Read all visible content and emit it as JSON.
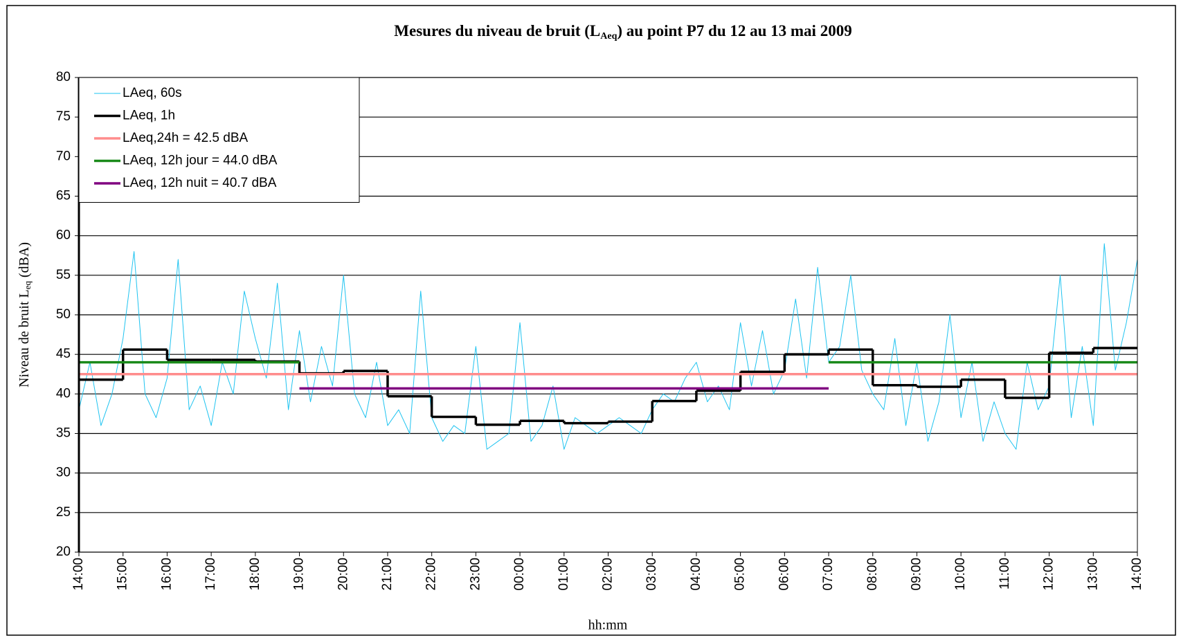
{
  "chart_data": {
    "type": "line",
    "title": {
      "main": "Mesures du niveau de bruit (L",
      "sub": "Aeq",
      "end": ") au point P7 du 12 au 13 mai 2009"
    },
    "y_label": {
      "main": "Niveau de bruit L",
      "sub": "eq",
      "end": " (dBA)"
    },
    "x_label": "hh:mm",
    "xlim": [
      0,
      24
    ],
    "xticks": [
      {
        "value": 0,
        "label": "14:00"
      },
      {
        "value": 1,
        "label": "15:00"
      },
      {
        "value": 2,
        "label": "16:00"
      },
      {
        "value": 3,
        "label": "17:00"
      },
      {
        "value": 4,
        "label": "18:00"
      },
      {
        "value": 5,
        "label": "19:00"
      },
      {
        "value": 6,
        "label": "20:00"
      },
      {
        "value": 7,
        "label": "21:00"
      },
      {
        "value": 8,
        "label": "22:00"
      },
      {
        "value": 9,
        "label": "23:00"
      },
      {
        "value": 10,
        "label": "00:00"
      },
      {
        "value": 11,
        "label": "01:00"
      },
      {
        "value": 12,
        "label": "02:00"
      },
      {
        "value": 13,
        "label": "03:00"
      },
      {
        "value": 14,
        "label": "04:00"
      },
      {
        "value": 15,
        "label": "05:00"
      },
      {
        "value": 16,
        "label": "06:00"
      },
      {
        "value": 17,
        "label": "07:00"
      },
      {
        "value": 18,
        "label": "08:00"
      },
      {
        "value": 19,
        "label": "09:00"
      },
      {
        "value": 20,
        "label": "10:00"
      },
      {
        "value": 21,
        "label": "11:00"
      },
      {
        "value": 22,
        "label": "12:00"
      },
      {
        "value": 23,
        "label": "13:00"
      },
      {
        "value": 24,
        "label": "14:00"
      }
    ],
    "ylim": [
      20,
      80
    ],
    "yticks": [
      20,
      25,
      30,
      35,
      40,
      45,
      50,
      55,
      60,
      65,
      70,
      75,
      80
    ],
    "grid": true,
    "legend": "upper left",
    "series": [
      {
        "name": "LAeq, 60s",
        "color": "#1ec3f0",
        "width": 1,
        "x": [
          0,
          0.25,
          0.5,
          0.75,
          1,
          1.25,
          1.5,
          1.75,
          2,
          2.25,
          2.5,
          2.75,
          3,
          3.25,
          3.5,
          3.75,
          4,
          4.25,
          4.5,
          4.75,
          5,
          5.25,
          5.5,
          5.75,
          6,
          6.25,
          6.5,
          6.75,
          7,
          7.25,
          7.5,
          7.75,
          8,
          8.25,
          8.5,
          8.75,
          9,
          9.25,
          9.5,
          9.75,
          10,
          10.25,
          10.5,
          10.75,
          11,
          11.25,
          11.5,
          11.75,
          12,
          12.25,
          12.5,
          12.75,
          13,
          13.25,
          13.5,
          13.75,
          14,
          14.25,
          14.5,
          14.75,
          15,
          15.25,
          15.5,
          15.75,
          16,
          16.25,
          16.5,
          16.75,
          17,
          17.25,
          17.5,
          17.75,
          18,
          18.25,
          18.5,
          18.75,
          19,
          19.25,
          19.5,
          19.75,
          20,
          20.25,
          20.5,
          20.75,
          21,
          21.25,
          21.5,
          21.75,
          22,
          22.25,
          22.5,
          22.75,
          23,
          23.25,
          23.5,
          23.75,
          24
        ],
        "values": [
          38,
          44,
          36,
          40,
          47,
          58,
          40,
          37,
          42,
          57,
          38,
          41,
          36,
          44,
          40,
          53,
          47,
          42,
          54,
          38,
          48,
          39,
          46,
          41,
          55,
          40,
          37,
          44,
          36,
          38,
          35,
          53,
          37,
          34,
          36,
          35,
          46,
          33,
          34,
          35,
          49,
          34,
          36,
          41,
          33,
          37,
          36,
          35,
          36,
          37,
          36,
          35,
          38,
          40,
          39,
          42,
          44,
          39,
          41,
          38,
          49,
          41,
          48,
          40,
          43,
          52,
          42,
          56,
          44,
          46,
          55,
          43,
          40,
          38,
          47,
          36,
          44,
          34,
          39,
          50,
          37,
          44,
          34,
          39,
          35,
          33,
          44,
          38,
          41,
          55,
          37,
          46,
          36,
          59,
          43,
          49,
          57
        ]
      },
      {
        "name": "LAeq, 1h",
        "color": "#000000",
        "width": 3.5,
        "drawstyle": "steps-post",
        "x": [
          0,
          1,
          2,
          3,
          4,
          5,
          6,
          7,
          8,
          9,
          10,
          11,
          12,
          13,
          14,
          15,
          16,
          17,
          18,
          19,
          20,
          21,
          22,
          23
        ],
        "values": [
          41.8,
          45.6,
          44.3,
          44.3,
          44.1,
          42.6,
          42.9,
          39.7,
          37.1,
          36.1,
          36.6,
          36.3,
          36.5,
          39.1,
          40.4,
          42.8,
          45.0,
          45.6,
          41.1,
          40.9,
          41.8,
          39.5,
          45.2,
          45.8
        ]
      },
      {
        "name": "LAeq,24h = 42.5 dBA",
        "color": "#ff8c8c",
        "width": 3.5,
        "x": [
          0,
          24
        ],
        "values": [
          42.5,
          42.5
        ]
      },
      {
        "name": "LAeq, 12h jour = 44.0 dBA",
        "color": "#1a8a1a",
        "width": 3.5,
        "x": [
          0,
          5,
          null,
          17,
          24
        ],
        "values": [
          44.0,
          44.0,
          null,
          44.0,
          44.0
        ]
      },
      {
        "name": "LAeq, 12h nuit = 40.7 dBA",
        "color": "#800080",
        "width": 3.5,
        "x": [
          5,
          17
        ],
        "values": [
          40.7,
          40.7
        ]
      }
    ]
  }
}
